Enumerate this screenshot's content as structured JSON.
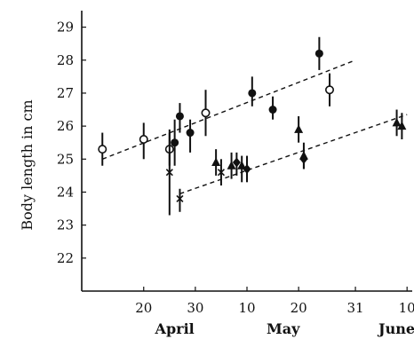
{
  "chart_data": {
    "type": "scatter",
    "title": "",
    "xlabel": "",
    "ylabel": "Body length in cm",
    "xlim": [
      "Apr 8",
      "Jun 11"
    ],
    "ylim": [
      21,
      29.5
    ],
    "grid": false,
    "x_ticks": [
      {
        "label": "20",
        "date": "Apr 20"
      },
      {
        "label": "30",
        "date": "Apr 30"
      },
      {
        "label": "10",
        "date": "May 10"
      },
      {
        "label": "20",
        "date": "May 20"
      },
      {
        "label": "31",
        "date": "May 31"
      },
      {
        "label": "10",
        "date": "Jun 10"
      }
    ],
    "month_labels": [
      {
        "label": "April",
        "date": "Apr 26"
      },
      {
        "label": "May",
        "date": "May 17"
      },
      {
        "label": "June",
        "date": "Jun 8"
      }
    ],
    "y_ticks": [
      "22",
      "23",
      "24",
      "25",
      "26",
      "27",
      "28",
      "29"
    ],
    "series": [
      {
        "marker": "open-circle",
        "points": [
          {
            "x": "Apr 12",
            "y": 25.3,
            "low": 24.8,
            "high": 25.8
          },
          {
            "x": "Apr 20",
            "y": 25.6,
            "low": 25.0,
            "high": 26.1
          },
          {
            "x": "Apr 25",
            "y": 25.3,
            "low": 24.8,
            "high": 25.8
          },
          {
            "x": "May 2",
            "y": 26.4,
            "low": 25.7,
            "high": 27.1
          },
          {
            "x": "May 26",
            "y": 27.1,
            "low": 26.6,
            "high": 27.6
          }
        ]
      },
      {
        "marker": "filled-circle",
        "points": [
          {
            "x": "Apr 26",
            "y": 25.5,
            "low": 24.8,
            "high": 26.2
          },
          {
            "x": "Apr 27",
            "y": 26.3,
            "low": 25.8,
            "high": 26.7
          },
          {
            "x": "Apr 29",
            "y": 25.8,
            "low": 25.2,
            "high": 26.2
          },
          {
            "x": "May 11",
            "y": 27.0,
            "low": 26.6,
            "high": 27.5
          },
          {
            "x": "May 15",
            "y": 26.5,
            "low": 26.2,
            "high": 26.9
          },
          {
            "x": "May 24",
            "y": 28.2,
            "low": 27.7,
            "high": 28.7
          }
        ]
      },
      {
        "marker": "filled-triangle",
        "points": [
          {
            "x": "May 4",
            "y": 24.9,
            "low": 24.5,
            "high": 25.3
          },
          {
            "x": "May 7",
            "y": 24.8,
            "low": 24.4,
            "high": 25.2
          },
          {
            "x": "May 9",
            "y": 24.8,
            "low": 24.3,
            "high": 25.1
          },
          {
            "x": "May 20",
            "y": 25.9,
            "low": 25.5,
            "high": 26.3
          },
          {
            "x": "May 21",
            "y": 25.1,
            "low": 24.7,
            "high": 25.5
          },
          {
            "x": "Jun 8",
            "y": 26.1,
            "low": 25.7,
            "high": 26.5
          },
          {
            "x": "Jun 9",
            "y": 26.0,
            "low": 25.6,
            "high": 26.4
          }
        ]
      },
      {
        "marker": "filled-diamond",
        "points": [
          {
            "x": "May 8",
            "y": 24.9,
            "low": 24.5,
            "high": 25.2
          },
          {
            "x": "May 10",
            "y": 24.7,
            "low": 24.3,
            "high": 25.1
          },
          {
            "x": "May 21",
            "y": 25.0,
            "low": 24.7,
            "high": 25.3
          }
        ]
      },
      {
        "marker": "cross",
        "points": [
          {
            "x": "Apr 25",
            "y": 24.6,
            "low": 23.3,
            "high": 25.9
          },
          {
            "x": "Apr 27",
            "y": 23.8,
            "low": 23.4,
            "high": 24.1
          },
          {
            "x": "May 5",
            "y": 24.6,
            "low": 24.2,
            "high": 25.0
          }
        ]
      }
    ],
    "trend_lines": [
      {
        "style": "dashed",
        "from": {
          "x": "Apr 12",
          "y": 25.0
        },
        "to": {
          "x": "May 31",
          "y": 28.0
        }
      },
      {
        "style": "dashed",
        "from": {
          "x": "Apr 27",
          "y": 23.95
        },
        "to": {
          "x": "Jun 10",
          "y": 26.35
        }
      }
    ]
  }
}
